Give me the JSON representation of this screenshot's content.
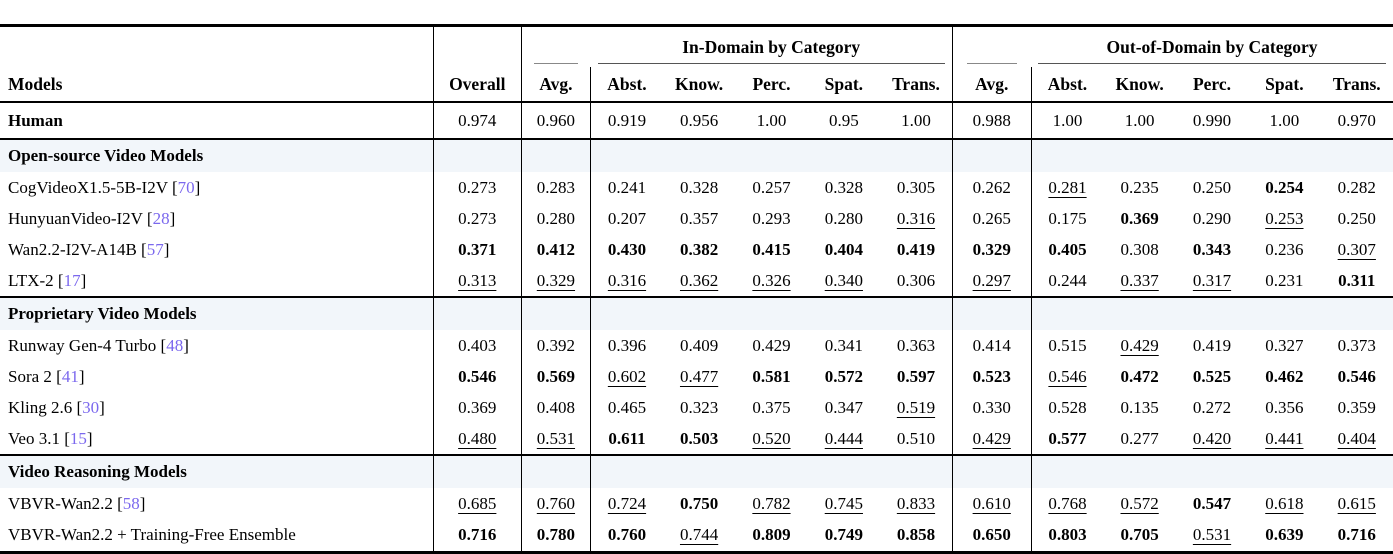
{
  "colors": {
    "citation": "#7B68EE",
    "section_row_bg": "#f2f6fa",
    "rule_color": "#000000"
  },
  "table": {
    "header": {
      "models_label": "Models",
      "overall_label": "Overall",
      "avg_label": "Avg.",
      "group_in_domain": "In-Domain by Category",
      "group_out_domain": "Out-of-Domain by Category",
      "categories": [
        "Abst.",
        "Know.",
        "Perc.",
        "Spat.",
        "Trans."
      ]
    },
    "human_row": {
      "name": "Human",
      "cells": [
        {
          "v": "0.974",
          "s": ""
        },
        {
          "v": "0.960",
          "s": ""
        },
        {
          "v": "0.919",
          "s": ""
        },
        {
          "v": "0.956",
          "s": ""
        },
        {
          "v": "1.00",
          "s": ""
        },
        {
          "v": "0.95",
          "s": ""
        },
        {
          "v": "1.00",
          "s": ""
        },
        {
          "v": "0.988",
          "s": ""
        },
        {
          "v": "1.00",
          "s": ""
        },
        {
          "v": "1.00",
          "s": ""
        },
        {
          "v": "0.990",
          "s": ""
        },
        {
          "v": "1.00",
          "s": ""
        },
        {
          "v": "0.970",
          "s": ""
        }
      ]
    },
    "sections": [
      {
        "title": "Open-source Video Models",
        "rows": [
          {
            "name": "CogVideoX1.5-5B-I2V",
            "cite": "70",
            "cells": [
              {
                "v": "0.273",
                "s": ""
              },
              {
                "v": "0.283",
                "s": ""
              },
              {
                "v": "0.241",
                "s": ""
              },
              {
                "v": "0.328",
                "s": ""
              },
              {
                "v": "0.257",
                "s": ""
              },
              {
                "v": "0.328",
                "s": ""
              },
              {
                "v": "0.305",
                "s": ""
              },
              {
                "v": "0.262",
                "s": ""
              },
              {
                "v": "0.281",
                "s": "u"
              },
              {
                "v": "0.235",
                "s": ""
              },
              {
                "v": "0.250",
                "s": ""
              },
              {
                "v": "0.254",
                "s": "b"
              },
              {
                "v": "0.282",
                "s": ""
              }
            ]
          },
          {
            "name": "HunyuanVideo-I2V",
            "cite": "28",
            "cells": [
              {
                "v": "0.273",
                "s": ""
              },
              {
                "v": "0.280",
                "s": ""
              },
              {
                "v": "0.207",
                "s": ""
              },
              {
                "v": "0.357",
                "s": ""
              },
              {
                "v": "0.293",
                "s": ""
              },
              {
                "v": "0.280",
                "s": ""
              },
              {
                "v": "0.316",
                "s": "u"
              },
              {
                "v": "0.265",
                "s": ""
              },
              {
                "v": "0.175",
                "s": ""
              },
              {
                "v": "0.369",
                "s": "b"
              },
              {
                "v": "0.290",
                "s": ""
              },
              {
                "v": "0.253",
                "s": "u"
              },
              {
                "v": "0.250",
                "s": ""
              }
            ]
          },
          {
            "name": "Wan2.2-I2V-A14B",
            "cite": "57",
            "cells": [
              {
                "v": "0.371",
                "s": "b"
              },
              {
                "v": "0.412",
                "s": "b"
              },
              {
                "v": "0.430",
                "s": "b"
              },
              {
                "v": "0.382",
                "s": "b"
              },
              {
                "v": "0.415",
                "s": "b"
              },
              {
                "v": "0.404",
                "s": "b"
              },
              {
                "v": "0.419",
                "s": "b"
              },
              {
                "v": "0.329",
                "s": "b"
              },
              {
                "v": "0.405",
                "s": "b"
              },
              {
                "v": "0.308",
                "s": ""
              },
              {
                "v": "0.343",
                "s": "b"
              },
              {
                "v": "0.236",
                "s": ""
              },
              {
                "v": "0.307",
                "s": "u"
              }
            ]
          },
          {
            "name": "LTX-2",
            "cite": "17",
            "cells": [
              {
                "v": "0.313",
                "s": "u"
              },
              {
                "v": "0.329",
                "s": "u"
              },
              {
                "v": "0.316",
                "s": "u"
              },
              {
                "v": "0.362",
                "s": "u"
              },
              {
                "v": "0.326",
                "s": "u"
              },
              {
                "v": "0.340",
                "s": "u"
              },
              {
                "v": "0.306",
                "s": ""
              },
              {
                "v": "0.297",
                "s": "u"
              },
              {
                "v": "0.244",
                "s": ""
              },
              {
                "v": "0.337",
                "s": "u"
              },
              {
                "v": "0.317",
                "s": "u"
              },
              {
                "v": "0.231",
                "s": ""
              },
              {
                "v": "0.311",
                "s": "b"
              }
            ]
          }
        ]
      },
      {
        "title": "Proprietary Video Models",
        "rows": [
          {
            "name": "Runway Gen-4 Turbo",
            "cite": "48",
            "cells": [
              {
                "v": "0.403",
                "s": ""
              },
              {
                "v": "0.392",
                "s": ""
              },
              {
                "v": "0.396",
                "s": ""
              },
              {
                "v": "0.409",
                "s": ""
              },
              {
                "v": "0.429",
                "s": ""
              },
              {
                "v": "0.341",
                "s": ""
              },
              {
                "v": "0.363",
                "s": ""
              },
              {
                "v": "0.414",
                "s": ""
              },
              {
                "v": "0.515",
                "s": ""
              },
              {
                "v": "0.429",
                "s": "u"
              },
              {
                "v": "0.419",
                "s": ""
              },
              {
                "v": "0.327",
                "s": ""
              },
              {
                "v": "0.373",
                "s": ""
              }
            ]
          },
          {
            "name": "Sora 2",
            "cite": "41",
            "cells": [
              {
                "v": "0.546",
                "s": "b"
              },
              {
                "v": "0.569",
                "s": "b"
              },
              {
                "v": "0.602",
                "s": "u"
              },
              {
                "v": "0.477",
                "s": "u"
              },
              {
                "v": "0.581",
                "s": "b"
              },
              {
                "v": "0.572",
                "s": "b"
              },
              {
                "v": "0.597",
                "s": "b"
              },
              {
                "v": "0.523",
                "s": "b"
              },
              {
                "v": "0.546",
                "s": "u"
              },
              {
                "v": "0.472",
                "s": "b"
              },
              {
                "v": "0.525",
                "s": "b"
              },
              {
                "v": "0.462",
                "s": "b"
              },
              {
                "v": "0.546",
                "s": "b"
              }
            ]
          },
          {
            "name": "Kling 2.6",
            "cite": "30",
            "cells": [
              {
                "v": "0.369",
                "s": ""
              },
              {
                "v": "0.408",
                "s": ""
              },
              {
                "v": "0.465",
                "s": ""
              },
              {
                "v": "0.323",
                "s": ""
              },
              {
                "v": "0.375",
                "s": ""
              },
              {
                "v": "0.347",
                "s": ""
              },
              {
                "v": "0.519",
                "s": "u"
              },
              {
                "v": "0.330",
                "s": ""
              },
              {
                "v": "0.528",
                "s": ""
              },
              {
                "v": "0.135",
                "s": ""
              },
              {
                "v": "0.272",
                "s": ""
              },
              {
                "v": "0.356",
                "s": ""
              },
              {
                "v": "0.359",
                "s": ""
              }
            ]
          },
          {
            "name": "Veo 3.1",
            "cite": "15",
            "cells": [
              {
                "v": "0.480",
                "s": "u"
              },
              {
                "v": "0.531",
                "s": "u"
              },
              {
                "v": "0.611",
                "s": "b"
              },
              {
                "v": "0.503",
                "s": "b"
              },
              {
                "v": "0.520",
                "s": "u"
              },
              {
                "v": "0.444",
                "s": "u"
              },
              {
                "v": "0.510",
                "s": ""
              },
              {
                "v": "0.429",
                "s": "u"
              },
              {
                "v": "0.577",
                "s": "b"
              },
              {
                "v": "0.277",
                "s": ""
              },
              {
                "v": "0.420",
                "s": "u"
              },
              {
                "v": "0.441",
                "s": "u"
              },
              {
                "v": "0.404",
                "s": "u"
              }
            ]
          }
        ]
      },
      {
        "title": "Video Reasoning Models",
        "rows": [
          {
            "name": "VBVR-Wan2.2",
            "cite": "58",
            "cells": [
              {
                "v": "0.685",
                "s": "u"
              },
              {
                "v": "0.760",
                "s": "u"
              },
              {
                "v": "0.724",
                "s": "u"
              },
              {
                "v": "0.750",
                "s": "b"
              },
              {
                "v": "0.782",
                "s": "u"
              },
              {
                "v": "0.745",
                "s": "u"
              },
              {
                "v": "0.833",
                "s": "u"
              },
              {
                "v": "0.610",
                "s": "u"
              },
              {
                "v": "0.768",
                "s": "u"
              },
              {
                "v": "0.572",
                "s": "u"
              },
              {
                "v": "0.547",
                "s": "b"
              },
              {
                "v": "0.618",
                "s": "u"
              },
              {
                "v": "0.615",
                "s": "u"
              }
            ]
          },
          {
            "name": "VBVR-Wan2.2 + Training-Free Ensemble",
            "cite": "",
            "cells": [
              {
                "v": "0.716",
                "s": "b"
              },
              {
                "v": "0.780",
                "s": "b"
              },
              {
                "v": "0.760",
                "s": "b"
              },
              {
                "v": "0.744",
                "s": "u"
              },
              {
                "v": "0.809",
                "s": "b"
              },
              {
                "v": "0.749",
                "s": "b"
              },
              {
                "v": "0.858",
                "s": "b"
              },
              {
                "v": "0.650",
                "s": "b"
              },
              {
                "v": "0.803",
                "s": "b"
              },
              {
                "v": "0.705",
                "s": "b"
              },
              {
                "v": "0.531",
                "s": "u"
              },
              {
                "v": "0.639",
                "s": "b"
              },
              {
                "v": "0.716",
                "s": "b"
              }
            ]
          }
        ]
      }
    ]
  }
}
